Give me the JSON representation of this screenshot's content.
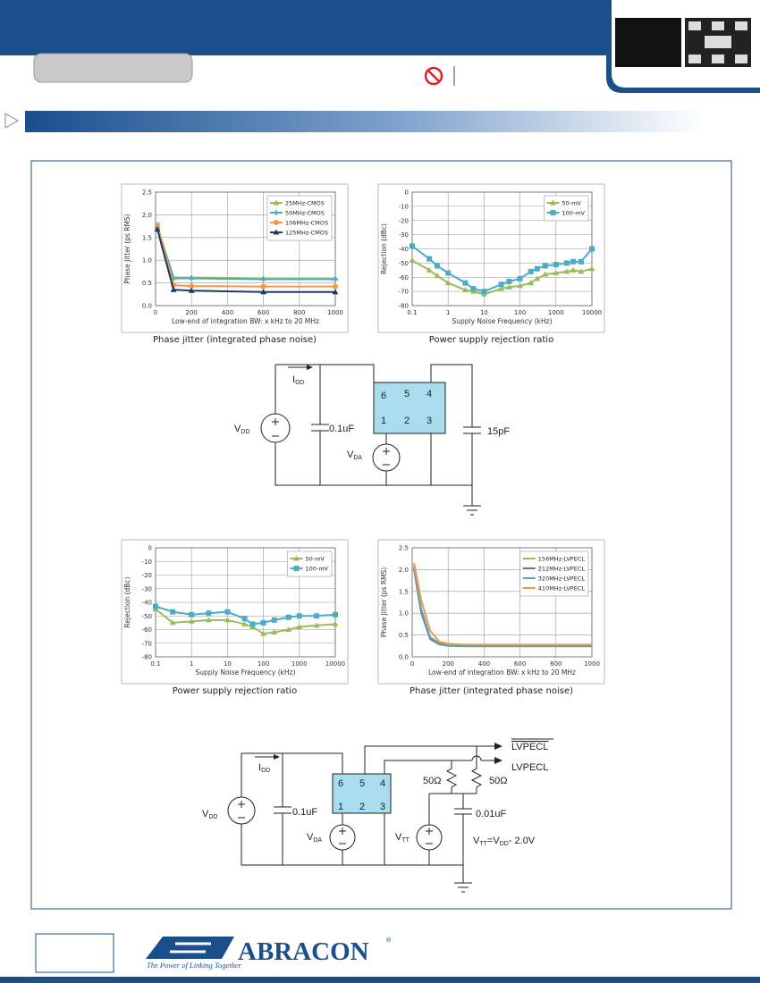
{
  "chart_data": [
    {
      "type": "line",
      "caption": "Phase jitter (integrated phase noise)",
      "x_label": "Low-end of integration BW: x kHz to 20 MHz",
      "y_label": "Phase Jitter (ps RMS)",
      "x": [
        10,
        100,
        200,
        600,
        1000
      ],
      "xlim": [
        0,
        1000
      ],
      "xticks": [
        0,
        200,
        400,
        600,
        800,
        1000
      ],
      "ylim": [
        0,
        2.5
      ],
      "yticks": [
        {
          "value": 0,
          "label": "0.0"
        },
        0.5,
        {
          "value": 1,
          "label": "1.0"
        },
        1.5,
        {
          "value": 2,
          "label": "2.0"
        },
        2.5
      ],
      "grid": true,
      "log_x": false,
      "legend": "top-right",
      "series": [
        {
          "name": "25MHz-CMOS",
          "color": "#9bbb59",
          "marker": "triangle",
          "values": [
            1.75,
            0.62,
            0.62,
            0.6,
            0.6
          ]
        },
        {
          "name": "50MHz-CMOS",
          "color": "#4bacc6",
          "marker": "cross",
          "values": [
            1.72,
            0.6,
            0.6,
            0.58,
            0.58
          ]
        },
        {
          "name": "106MHz-CMOS",
          "color": "#f79646",
          "marker": "circle",
          "values": [
            1.78,
            0.45,
            0.43,
            0.42,
            0.42
          ]
        },
        {
          "name": "125MHz-CMOS",
          "color": "#1f3864",
          "marker": "triangle",
          "values": [
            1.68,
            0.35,
            0.33,
            0.3,
            0.3
          ]
        }
      ]
    },
    {
      "type": "line",
      "caption": "Power supply rejection ratio",
      "x_label": "Supply Noise Frequency (kHz)",
      "y_label": "Rejection (dBc)",
      "x": [
        0.1,
        0.3,
        0.5,
        1,
        3,
        5,
        10,
        30,
        50,
        100,
        200,
        300,
        500,
        1000,
        2000,
        3000,
        5000,
        10000
      ],
      "xlim": [
        0.1,
        10000
      ],
      "xticks": [
        0.1,
        1,
        10,
        100,
        1000,
        10000
      ],
      "ylim": [
        -80,
        0
      ],
      "yticks": [
        0,
        -10,
        -20,
        -30,
        -40,
        -50,
        -60,
        -70,
        -80
      ],
      "grid": true,
      "log_x": true,
      "legend": "top-right",
      "series": [
        {
          "name": "50-mV",
          "color": "#9bbb59",
          "marker": "triangle",
          "values": [
            -48,
            -55,
            -59,
            -64,
            -69,
            -70,
            -72,
            -68,
            -67,
            -66,
            -64,
            -61,
            -58,
            -57,
            -56,
            -55,
            -56,
            -54
          ]
        },
        {
          "name": "100-mV",
          "color": "#4bacc6",
          "marker": "square",
          "values": [
            -38,
            -47,
            -52,
            -57,
            -64,
            -68,
            -70,
            -65,
            -63,
            -61,
            -56,
            -54,
            -52,
            -51,
            -50,
            -49,
            -49,
            -40
          ]
        }
      ]
    },
    {
      "type": "line",
      "caption": "Power supply rejection ratio",
      "x_label": "Supply Noise Frequency (kHz)",
      "y_label": "Rejection (dBc)",
      "x": [
        0.1,
        0.3,
        1,
        3,
        10,
        30,
        50,
        100,
        200,
        500,
        1000,
        3000,
        10000
      ],
      "xlim": [
        0.1,
        10000
      ],
      "xticks": [
        0.1,
        1,
        10,
        100,
        1000,
        10000
      ],
      "ylim": [
        -80,
        0
      ],
      "yticks": [
        0,
        -10,
        -20,
        -30,
        -40,
        -50,
        -60,
        -70,
        -80
      ],
      "grid": true,
      "log_x": true,
      "legend": "top-right",
      "series": [
        {
          "name": "50-mV",
          "color": "#9bbb59",
          "marker": "triangle",
          "values": [
            -45,
            -55,
            -54,
            -53,
            -53,
            -56,
            -58,
            -63,
            -62,
            -60,
            -58,
            -57,
            -56
          ]
        },
        {
          "name": "100-mV",
          "color": "#4bacc6",
          "marker": "square",
          "values": [
            -43,
            -47,
            -49,
            -48,
            -47,
            -52,
            -56,
            -55,
            -53,
            -51,
            -50,
            -50,
            -49
          ]
        }
      ]
    },
    {
      "type": "line",
      "caption": "Phase jitter (integrated phase noise)",
      "x_label": "Low-end of integration BW: x kHz to 20 MHz",
      "y_label": "Phase Jitter (ps RMS)",
      "x": [
        10,
        50,
        100,
        150,
        200,
        300,
        1000
      ],
      "xlim": [
        0,
        1000
      ],
      "xticks": [
        0,
        200,
        400,
        600,
        800,
        1000
      ],
      "ylim": [
        0,
        2.5
      ],
      "yticks": [
        {
          "value": 0,
          "label": "0.0"
        },
        0.5,
        {
          "value": 1,
          "label": "1.0"
        },
        1.5,
        {
          "value": 2,
          "label": "2.0"
        },
        2.5
      ],
      "grid": true,
      "log_x": false,
      "legend": "top-right",
      "series": [
        {
          "name": "156MHz-LVPECL",
          "color": "#9bbb59",
          "marker": "none",
          "values": [
            2.0,
            1.0,
            0.4,
            0.28,
            0.25,
            0.24,
            0.24
          ]
        },
        {
          "name": "212MHz-LVPECL",
          "color": "#8064a2",
          "marker": "none",
          "values": [
            2.05,
            1.05,
            0.42,
            0.3,
            0.26,
            0.25,
            0.25
          ]
        },
        {
          "name": "320MHz-LVPECL",
          "color": "#4bacc6",
          "marker": "none",
          "values": [
            2.1,
            1.1,
            0.45,
            0.32,
            0.27,
            0.26,
            0.26
          ]
        },
        {
          "name": "410MHz-LVPECL",
          "color": "#f79646",
          "marker": "none",
          "values": [
            2.15,
            1.3,
            0.6,
            0.35,
            0.3,
            0.28,
            0.28
          ]
        }
      ]
    }
  ],
  "circuit_1": {
    "idd": [
      "I",
      "DD"
    ],
    "vdd": [
      "V",
      "DD"
    ],
    "vda": [
      "V",
      "DA"
    ],
    "pins": [
      "6",
      "5",
      "4",
      "1",
      "2",
      "3"
    ],
    "cap_1": "0.1uF",
    "cap_2": "15pF"
  },
  "circuit_2": {
    "idd": [
      "I",
      "DD"
    ],
    "vdd": [
      "V",
      "DD"
    ],
    "vda": [
      "V",
      "DA"
    ],
    "vtt": [
      "V",
      "TT"
    ],
    "pins": [
      "6",
      "5",
      "4",
      "1",
      "2",
      "3"
    ],
    "cap_1": "0.1uF",
    "cap_2": "0.01uF",
    "res_1": "50Ω",
    "res_2": "50Ω",
    "out_inverted": "LVPECL",
    "out": "LVPECL",
    "formula": [
      "V",
      "TT",
      "=V",
      "DD",
      "- 2.0V"
    ]
  },
  "footer": {
    "logo": "ABRACON",
    "registered": "®",
    "tagline": "The Power of Linking Together"
  }
}
